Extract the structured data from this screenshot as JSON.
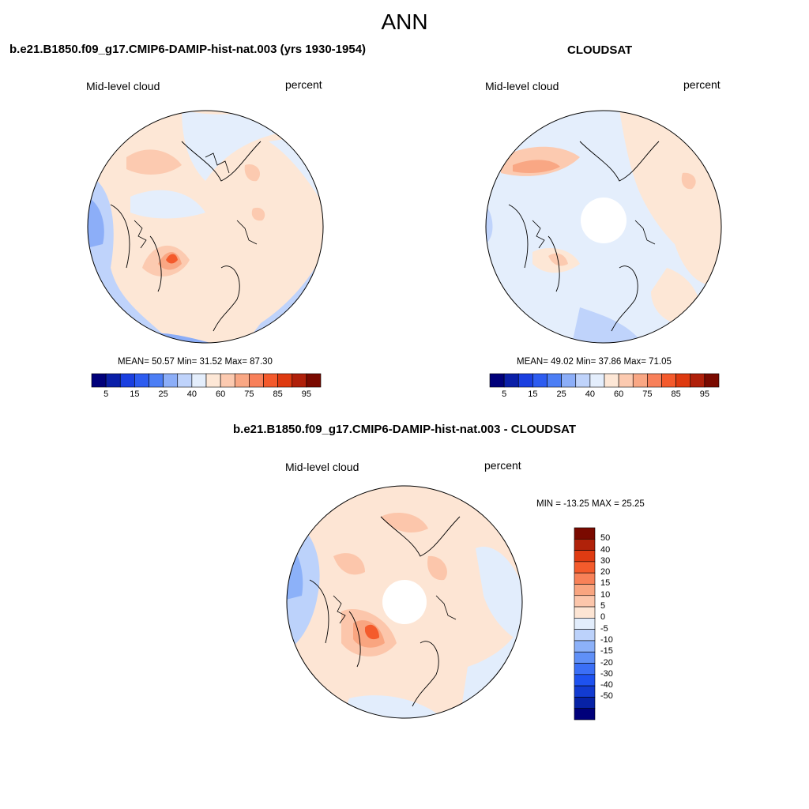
{
  "title": "ANN",
  "colors": {
    "pos_scale": [
      "#00007a",
      "#0a1fa8",
      "#1a3fe0",
      "#2d5cf0",
      "#4c7ef5",
      "#8caef8",
      "#bfd3fb",
      "#e4eefc",
      "#fde7d6",
      "#fccab0",
      "#f9a784",
      "#f8805a",
      "#f45a2c",
      "#de3a10",
      "#b0200a",
      "#7a0a00"
    ],
    "diff_scale": [
      "#00007a",
      "#0722a6",
      "#123bd1",
      "#1e52f0",
      "#3b6ff6",
      "#6090f7",
      "#8cb1f9",
      "#bcd2fb",
      "#e2edfc",
      "#fde5d4",
      "#fcc6ab",
      "#f9a580",
      "#f88158",
      "#f45b2c",
      "#df3b12",
      "#b0220a",
      "#7a0a00"
    ]
  },
  "top_left": {
    "title": "b.e21.B1850.f09_g17.CMIP6-DAMIP-hist-nat.003 (yrs 1930-1954)",
    "left_label": "Mid-level cloud",
    "right_label": "percent",
    "stats": "MEAN=  50.57  Min=  31.52  Max=  87.30",
    "colorbar_labels": [
      "5",
      "15",
      "25",
      "40",
      "60",
      "75",
      "85",
      "95"
    ]
  },
  "top_right": {
    "title": "CLOUDSAT",
    "left_label": "Mid-level cloud",
    "right_label": "percent",
    "stats": "MEAN=  49.02  Min=  37.86  Max=  71.05",
    "colorbar_labels": [
      "5",
      "15",
      "25",
      "40",
      "60",
      "75",
      "85",
      "95"
    ]
  },
  "bottom": {
    "title": "b.e21.B1850.f09_g17.CMIP6-DAMIP-hist-nat.003 - CLOUDSAT",
    "left_label": "Mid-level cloud",
    "right_label": "percent",
    "stats": "MIN = -13.25 MAX =  25.25",
    "colorbar_labels": [
      "50",
      "40",
      "30",
      "20",
      "15",
      "10",
      "5",
      "0",
      "-5",
      "-10",
      "-15",
      "-20",
      "-30",
      "-40",
      "-50"
    ]
  }
}
